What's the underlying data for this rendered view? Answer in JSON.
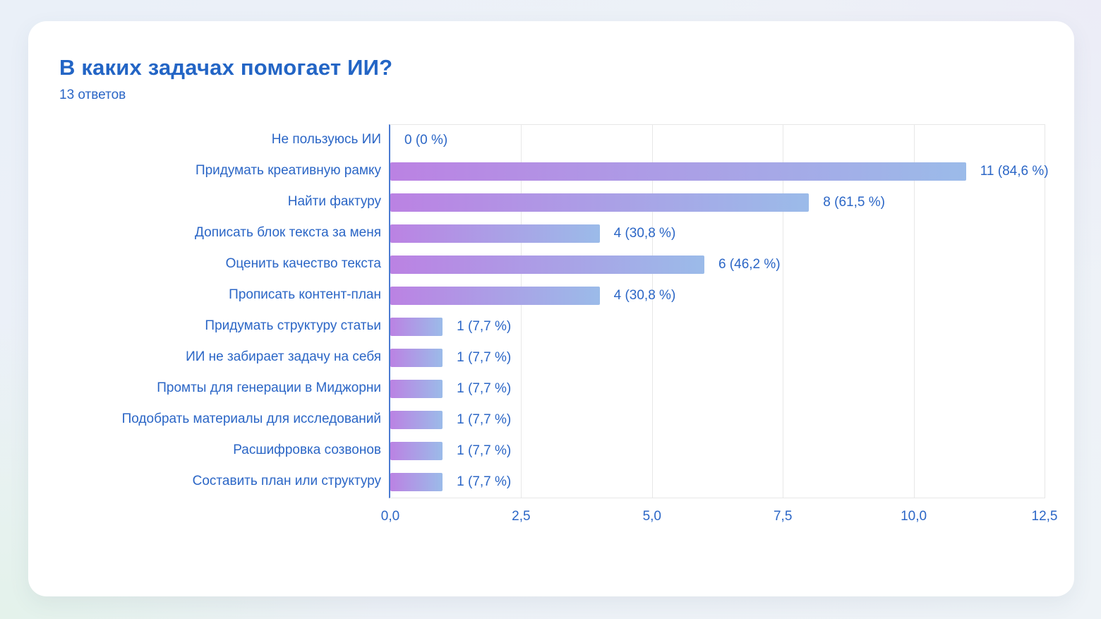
{
  "card": {
    "title": "В каких задачах помогает ИИ?",
    "subtitle": "13 ответов"
  },
  "chart_data": {
    "type": "bar",
    "orientation": "horizontal",
    "title": "В каких задачах помогает ИИ?",
    "subtitle": "13 ответов",
    "categories": [
      "Не пользуюсь ИИ",
      "Придумать креативную рамку",
      "Найти фактуру",
      "Дописать блок текста за меня",
      "Оценить качество текста",
      "Прописать контент-план",
      "Придумать структуру статьи",
      "ИИ не забирает задачу на себя",
      "Промты для генерации в Миджорни",
      "Подобрать материалы для исследований",
      "Расшифровка созвонов",
      "Составить план или структуру"
    ],
    "values": [
      0,
      11,
      8,
      4,
      6,
      4,
      1,
      1,
      1,
      1,
      1,
      1
    ],
    "annotations": [
      "0 (0 %)",
      "11 (84,6 %)",
      "8 (61,5 %)",
      "4 (30,8 %)",
      "6 (46,2 %)",
      "4 (30,8 %)",
      "1 (7,7 %)",
      "1 (7,7 %)",
      "1 (7,7 %)",
      "1 (7,7 %)",
      "1 (7,7 %)",
      "1 (7,7 %)"
    ],
    "xlim": [
      0,
      12.5
    ],
    "xtick_labels": [
      "0,0",
      "2,5",
      "5,0",
      "7,5",
      "10,0",
      "12,5"
    ],
    "xtick_values": [
      0,
      2.5,
      5,
      7.5,
      10,
      12.5
    ],
    "grid": true,
    "legend_position": "none"
  },
  "colors": {
    "title_text": "#2365c5",
    "label_text": "#2b66c6",
    "axis_line": "#4a7ad1",
    "gridline": "#e7e7e7",
    "bar_gradient_start": "#bb82e3",
    "bar_gradient_end": "#9bbbe9",
    "card_background": "#ffffff"
  }
}
